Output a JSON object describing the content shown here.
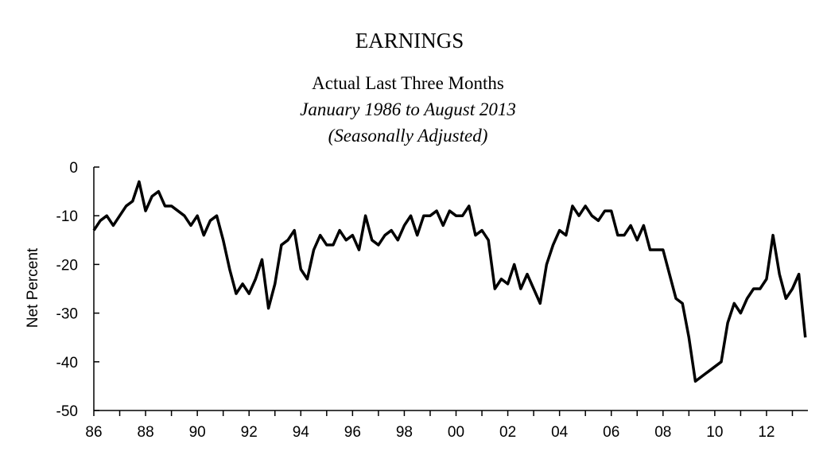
{
  "chart_data": {
    "type": "line",
    "title": "EARNINGS",
    "subtitle": "Actual Last Three Months",
    "subtitle2": "January 1986 to August 2013",
    "subtitle3": "(Seasonally Adjusted)",
    "y_label": "Net Percent",
    "x": [
      1986,
      1986.25,
      1986.5,
      1986.75,
      1987,
      1987.25,
      1987.5,
      1987.75,
      1988,
      1988.25,
      1988.5,
      1988.75,
      1989,
      1989.25,
      1989.5,
      1989.75,
      1990,
      1990.25,
      1990.5,
      1990.75,
      1991,
      1991.25,
      1991.5,
      1991.75,
      1992,
      1992.25,
      1992.5,
      1992.75,
      1993,
      1993.25,
      1993.5,
      1993.75,
      1994,
      1994.25,
      1994.5,
      1994.75,
      1995,
      1995.25,
      1995.5,
      1995.75,
      1996,
      1996.25,
      1996.5,
      1996.75,
      1997,
      1997.25,
      1997.5,
      1997.75,
      1998,
      1998.25,
      1998.5,
      1998.75,
      1999,
      1999.25,
      1999.5,
      1999.75,
      2000,
      2000.25,
      2000.5,
      2000.75,
      2001,
      2001.25,
      2001.5,
      2001.75,
      2002,
      2002.25,
      2002.5,
      2002.75,
      2003,
      2003.25,
      2003.5,
      2003.75,
      2004,
      2004.25,
      2004.5,
      2004.75,
      2005,
      2005.25,
      2005.5,
      2005.75,
      2006,
      2006.25,
      2006.5,
      2006.75,
      2007,
      2007.25,
      2007.5,
      2007.75,
      2008,
      2008.25,
      2008.5,
      2008.75,
      2009,
      2009.25,
      2009.5,
      2009.75,
      2010,
      2010.25,
      2010.5,
      2010.75,
      2011,
      2011.25,
      2011.5,
      2011.75,
      2012,
      2012.25,
      2012.5,
      2012.75,
      2013,
      2013.25,
      2013.5
    ],
    "series": [
      {
        "name": "Net Percent",
        "color": "#000000",
        "values": [
          -13,
          -11,
          -10,
          -12,
          -10,
          -8,
          -7,
          -3,
          -9,
          -6,
          -5,
          -8,
          -8,
          -9,
          -10,
          -12,
          -10,
          -14,
          -11,
          -10,
          -15,
          -21,
          -26,
          -24,
          -26,
          -23,
          -19,
          -29,
          -24,
          -16,
          -15,
          -13,
          -21,
          -23,
          -17,
          -14,
          -16,
          -16,
          -13,
          -15,
          -14,
          -17,
          -10,
          -15,
          -16,
          -14,
          -13,
          -15,
          -12,
          -10,
          -14,
          -10,
          -10,
          -9,
          -12,
          -9,
          -10,
          -10,
          -8,
          -14,
          -13,
          -15,
          -25,
          -23,
          -24,
          -20,
          -25,
          -22,
          -25,
          -28,
          -20,
          -16,
          -13,
          -14,
          -8,
          -10,
          -8,
          -10,
          -11,
          -9,
          -9,
          -14,
          -14,
          -12,
          -15,
          -12,
          -17,
          -17,
          -17,
          -22,
          -27,
          -28,
          -35,
          -44,
          -43,
          -42,
          -41,
          -40,
          -32,
          -28,
          -30,
          -27,
          -25,
          -25,
          -23,
          -14,
          -22,
          -27,
          -25,
          -22,
          -35
        ]
      }
    ],
    "xlim": [
      1986,
      2013.6
    ],
    "xticks": [
      {
        "value": 1986,
        "label": "86"
      },
      {
        "value": 1988,
        "label": "88"
      },
      {
        "value": 1990,
        "label": "90"
      },
      {
        "value": 1992,
        "label": "92"
      },
      {
        "value": 1994,
        "label": "94"
      },
      {
        "value": 1996,
        "label": "96"
      },
      {
        "value": 1998,
        "label": "98"
      },
      {
        "value": 2000,
        "label": "00"
      },
      {
        "value": 2002,
        "label": "02"
      },
      {
        "value": 2004,
        "label": "04"
      },
      {
        "value": 2006,
        "label": "06"
      },
      {
        "value": 2008,
        "label": "08"
      },
      {
        "value": 2010,
        "label": "10"
      },
      {
        "value": 2012,
        "label": "12"
      }
    ],
    "xminor_ticks": [
      1987,
      1989,
      1991,
      1993,
      1995,
      1997,
      1999,
      2001,
      2003,
      2005,
      2007,
      2009,
      2011,
      2013
    ],
    "ylim": [
      -50,
      0
    ],
    "yticks": [
      0,
      -10,
      -20,
      -30,
      -40,
      -50
    ],
    "grid": false
  }
}
